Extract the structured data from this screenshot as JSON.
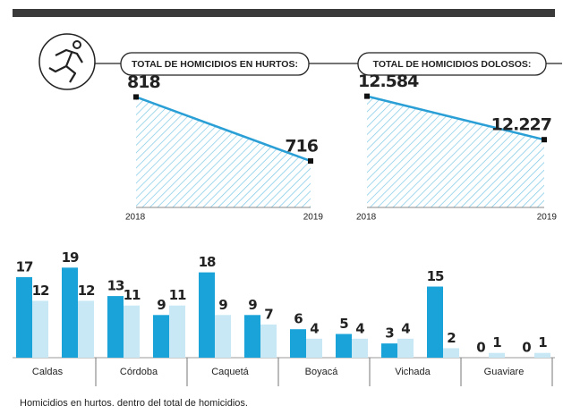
{
  "chart_data": [
    {
      "type": "area",
      "title": "TOTAL DE HOMICIDIOS EN HURTOS:",
      "categories": [
        "2018",
        "2019"
      ],
      "values": [
        818,
        716
      ],
      "ylim": [
        642,
        830
      ],
      "color": "#2a9fd6"
    },
    {
      "type": "area",
      "title": "TOTAL DE HOMICIDIOS DOLOSOS:",
      "categories": [
        "2018",
        "2019"
      ],
      "values": [
        12584,
        12227
      ],
      "value_labels": [
        "12.584",
        "12.227"
      ],
      "ylim": [
        11670,
        12640
      ],
      "color": "#2a9fd6"
    },
    {
      "type": "bar",
      "categories": [
        "Caldas",
        "Córdoba",
        "Caquetá",
        "Boyacá",
        "Vichada",
        "Guaviare"
      ],
      "series": [
        {
          "color": "#1aa3d9",
          "values": [
            17,
            13,
            18,
            6,
            3,
            0
          ]
        },
        {
          "color": "#c9e8f5",
          "values": [
            12,
            11,
            9,
            4,
            4,
            1
          ]
        },
        {
          "color": "#1aa3d9",
          "values": [
            19,
            9,
            9,
            5,
            15,
            0
          ]
        },
        {
          "color": "#c9e8f5",
          "values": [
            12,
            11,
            7,
            4,
            2,
            1
          ]
        }
      ],
      "ylim": [
        0,
        20
      ],
      "caption": "Homicidios en hurtos. dentro del total de homicidios."
    }
  ]
}
